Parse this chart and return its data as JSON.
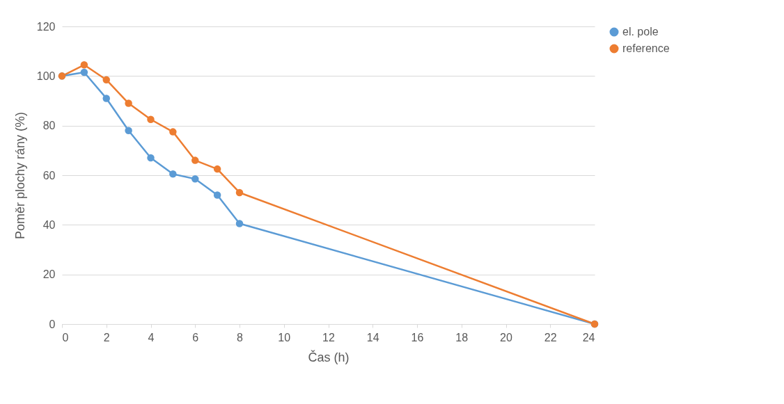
{
  "chart_data": {
    "type": "line",
    "xlabel": "Čas (h)",
    "ylabel": "Poměr plochy rány (%)",
    "x": [
      0,
      1,
      2,
      3,
      4,
      5,
      6,
      7,
      8,
      24
    ],
    "series": [
      {
        "name": "el. pole",
        "color": "#5b9bd5",
        "values": [
          100,
          101.5,
          91,
          78,
          67,
          60.5,
          58.5,
          52,
          40.5,
          0
        ]
      },
      {
        "name": "reference",
        "color": "#ed7d31",
        "values": [
          100,
          104.5,
          98.5,
          89,
          82.5,
          77.5,
          66,
          62.5,
          53,
          0
        ]
      }
    ],
    "xlim": [
      0,
      24
    ],
    "xticks": [
      0,
      2,
      4,
      6,
      8,
      10,
      12,
      14,
      16,
      18,
      20,
      22,
      24
    ],
    "ylim": [
      0,
      120
    ],
    "yticks": [
      0,
      20,
      40,
      60,
      80,
      100,
      120
    ],
    "grid": "y",
    "legend": "right",
    "marker": "circle",
    "line_style": "solid"
  }
}
